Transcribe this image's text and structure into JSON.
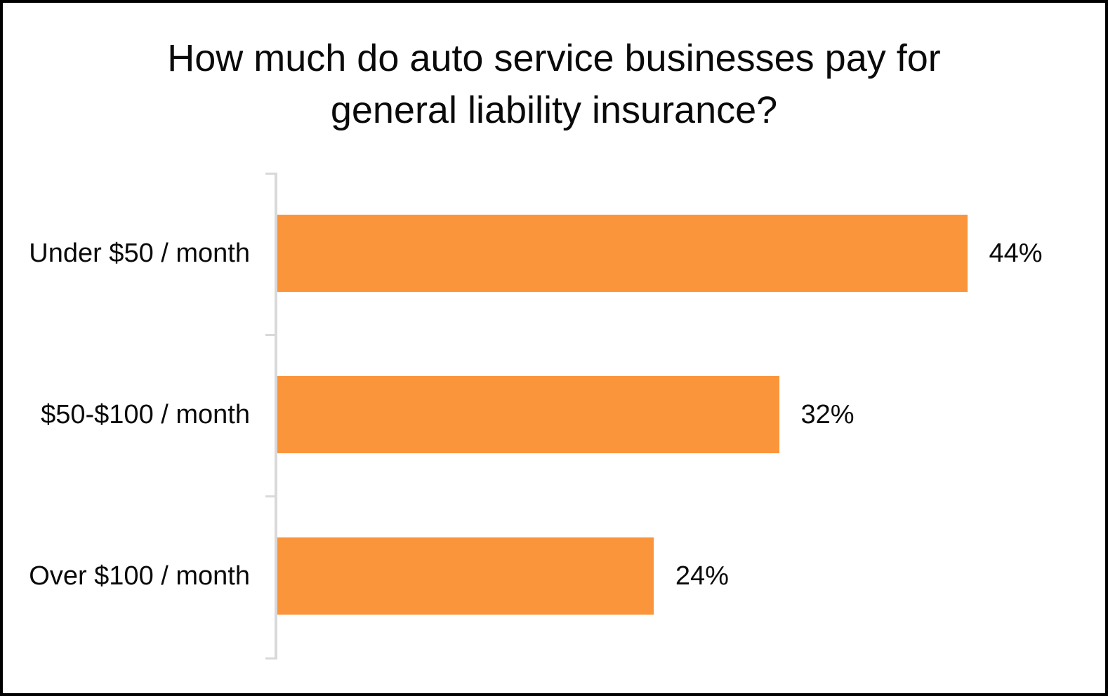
{
  "frame": {
    "background": "#FFFFFF",
    "border_color": "#000000"
  },
  "title": {
    "line1": "How much do auto service businesses pay for",
    "line2": "general liability insurance?"
  },
  "chart_data": {
    "type": "bar",
    "orientation": "horizontal",
    "title": "How much do auto service businesses pay for general liability insurance?",
    "categories": [
      "Under $50 / month",
      "$50-$100 / month",
      "Over $100 / month"
    ],
    "values": [
      44,
      32,
      24
    ],
    "value_labels": [
      "44%",
      "32%",
      "24%"
    ],
    "unit": "%",
    "xlabel": "",
    "ylabel": "",
    "xlim": [
      0,
      52.8
    ],
    "grid": false,
    "legend": false,
    "data_labels": "outside-end",
    "bar_color": "#FB953B",
    "axis_color": "#D9D9D9",
    "text_color": "#0A0A0A"
  }
}
